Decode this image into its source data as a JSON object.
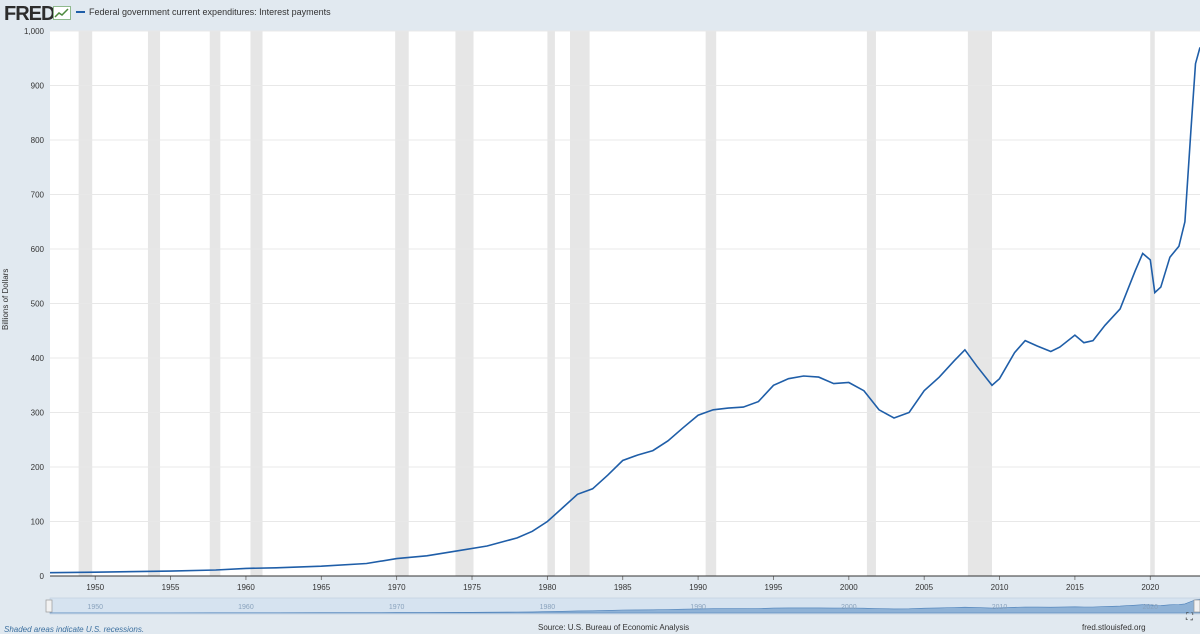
{
  "header": {
    "logo_text": "FRED",
    "logo_icon": "chart-line-icon",
    "legend_label": "Federal government current expenditures: Interest payments",
    "line_color": "#1f5ea8"
  },
  "footer": {
    "recession_note": "Shaded areas indicate U.S. recessions.",
    "source": "Source: U.S. Bureau of Economic Analysis",
    "site": "fred.stlouisfed.org"
  },
  "chart_data": {
    "type": "line",
    "title": "",
    "xlabel": "",
    "ylabel": "Billions of Dollars",
    "xlim": [
      1947.0,
      2023.3
    ],
    "ylim": [
      0,
      1000
    ],
    "grid": true,
    "yticks": [
      0,
      100,
      200,
      300,
      400,
      500,
      600,
      700,
      800,
      900,
      1000
    ],
    "ytick_labels": [
      "0",
      "100",
      "200",
      "300",
      "400",
      "500",
      "600",
      "700",
      "800",
      "900",
      "1,000"
    ],
    "xticks": [
      1950,
      1955,
      1960,
      1965,
      1970,
      1975,
      1980,
      1985,
      1990,
      1995,
      2000,
      2005,
      2010,
      2015,
      2020
    ],
    "navigator_ticks": [
      1950,
      1960,
      1970,
      1980,
      1990,
      2000,
      2010,
      2020
    ],
    "recessions": [
      [
        1948.9,
        1949.8
      ],
      [
        1953.5,
        1954.3
      ],
      [
        1957.6,
        1958.3
      ],
      [
        1960.3,
        1961.1
      ],
      [
        1969.9,
        1970.8
      ],
      [
        1973.9,
        1975.1
      ],
      [
        1980.0,
        1980.5
      ],
      [
        1981.5,
        1982.8
      ],
      [
        1990.5,
        1991.2
      ],
      [
        2001.2,
        2001.8
      ],
      [
        2007.9,
        2009.5
      ],
      [
        2020.0,
        2020.3
      ]
    ],
    "series": [
      {
        "name": "Federal government current expenditures: Interest payments",
        "x": [
          1947,
          1950,
          1955,
          1958,
          1960,
          1962,
          1965,
          1968,
          1970,
          1972,
          1974,
          1976,
          1978,
          1979,
          1980,
          1981,
          1982,
          1983,
          1984,
          1985,
          1986,
          1987,
          1988,
          1989,
          1990,
          1991,
          1992,
          1993,
          1994,
          1995,
          1996,
          1997,
          1998,
          1999,
          2000,
          2001,
          2002,
          2003,
          2004,
          2005,
          2006,
          2007,
          2007.7,
          2008.5,
          2009.5,
          2010,
          2011,
          2011.7,
          2012.5,
          2013.4,
          2014,
          2015,
          2015.6,
          2016.2,
          2017,
          2018,
          2019,
          2019.5,
          2020,
          2020.3,
          2020.7,
          2021.3,
          2021.9,
          2022.3,
          2022.7,
          2023.0,
          2023.3
        ],
        "y": [
          6,
          7,
          9,
          11,
          14,
          15,
          18,
          23,
          32,
          37,
          46,
          55,
          70,
          82,
          100,
          125,
          150,
          160,
          185,
          212,
          222,
          230,
          248,
          272,
          295,
          305,
          308,
          310,
          320,
          350,
          362,
          367,
          365,
          353,
          355,
          340,
          305,
          290,
          300,
          340,
          365,
          395,
          415,
          385,
          350,
          362,
          410,
          432,
          422,
          412,
          420,
          442,
          428,
          432,
          460,
          490,
          560,
          592,
          580,
          520,
          530,
          585,
          605,
          650,
          820,
          940,
          970
        ]
      }
    ]
  }
}
